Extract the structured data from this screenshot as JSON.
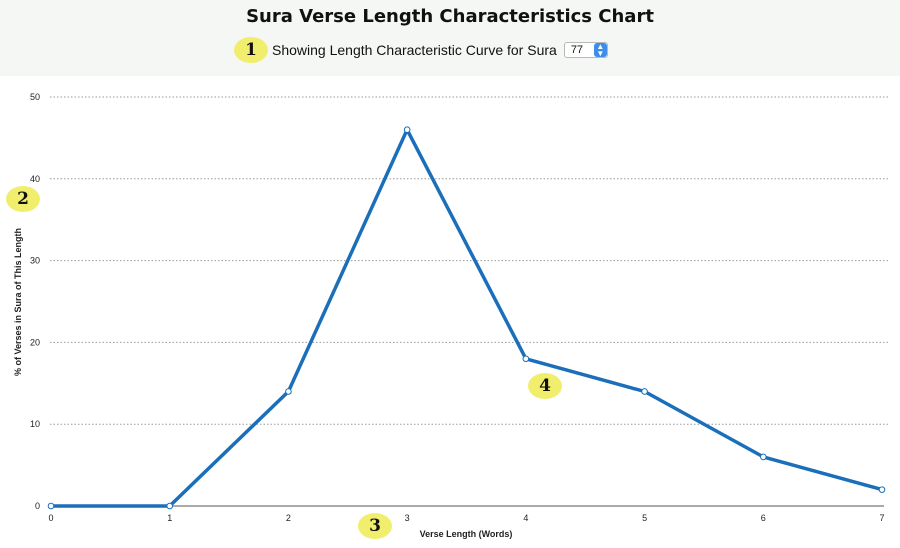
{
  "header": {
    "title": "Sura Verse Length Characteristics Chart",
    "subtitle": "Showing Length Characteristic Curve for Sura",
    "sura_select": {
      "selected": "77"
    }
  },
  "badges": [
    "1",
    "2",
    "3",
    "4"
  ],
  "colors": {
    "line": "#1b6fba",
    "badge": "#f1ee6e",
    "header_bg": "#f5f7f4",
    "grid": "#9a9a9a"
  },
  "chart_data": {
    "type": "line",
    "title": "Sura Verse Length Characteristics Chart",
    "xlabel": "Verse Length (Words)",
    "ylabel": "% of Verses in Sura of This Length",
    "x": [
      0,
      1,
      2,
      3,
      4,
      5,
      6,
      7
    ],
    "y": [
      0,
      0,
      14,
      46,
      18,
      14,
      6,
      2
    ],
    "xlim": [
      0,
      7
    ],
    "ylim": [
      0,
      50
    ],
    "yticks": [
      0,
      10,
      20,
      30,
      40,
      50
    ],
    "xticks": [
      0,
      1,
      2,
      3,
      4,
      5,
      6,
      7
    ],
    "grid": "horizontal dotted",
    "legend": "none"
  }
}
